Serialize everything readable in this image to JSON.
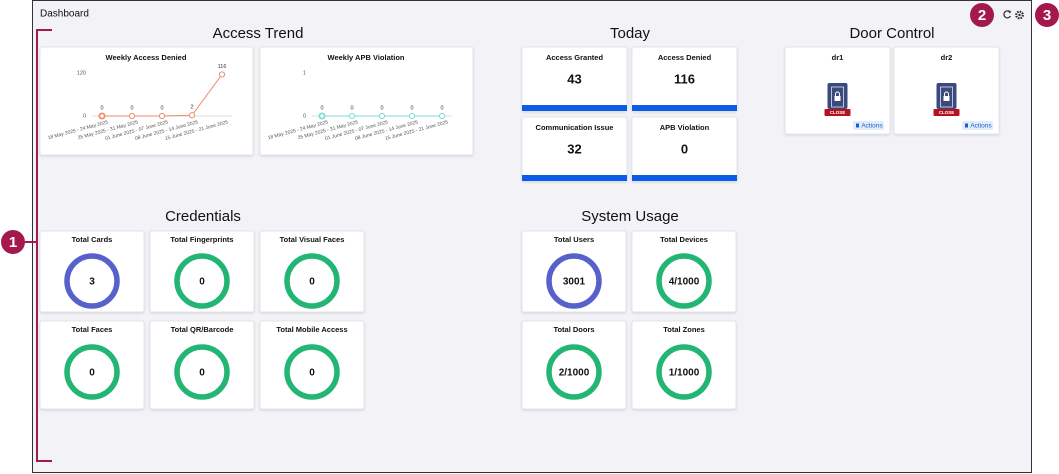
{
  "header": {
    "title": "Dashboard"
  },
  "annotations": [
    "1",
    "2",
    "3"
  ],
  "access_trend": {
    "title": "Access Trend",
    "charts": [
      {
        "type": "line",
        "title": "Weekly Access Denied",
        "categories": [
          "18 May 2025 - 24 May 2025",
          "25 May 2025 - 31 May 2025",
          "01 June 2025 - 07 June 2025",
          "08 June 2025 - 14 June 2025",
          "15 June 2025 - 21 June 2025"
        ],
        "values": [
          0,
          0,
          0,
          2,
          116
        ],
        "ylim": [
          0,
          120
        ],
        "yticks": [
          0,
          120
        ],
        "color": "#f28a6b"
      },
      {
        "type": "line",
        "title": "Weekly APB Violation",
        "categories": [
          "18 May 2025 - 24 May 2025",
          "25 May 2025 - 31 May 2025",
          "01 June 2025 - 07 June 2025",
          "08 June 2025 - 14 June 2025",
          "15 June 2025 - 21 June 2025"
        ],
        "values": [
          0,
          0,
          0,
          0,
          0
        ],
        "ylim": [
          0,
          1
        ],
        "yticks": [
          0,
          1
        ],
        "color": "#7fdcd6"
      }
    ]
  },
  "today": {
    "title": "Today",
    "cards": [
      {
        "label": "Access Granted",
        "value": 43
      },
      {
        "label": "Access Denied",
        "value": 116
      },
      {
        "label": "Communication Issue",
        "value": 32
      },
      {
        "label": "APB Violation",
        "value": 0
      }
    ]
  },
  "door_control": {
    "title": "Door Control",
    "doors": [
      {
        "name": "dr1",
        "status": "CLOSE",
        "action": "Actions"
      },
      {
        "name": "dr2",
        "status": "CLOSE",
        "action": "Actions"
      }
    ]
  },
  "credentials": {
    "title": "Credentials",
    "cards": [
      {
        "label": "Total Cards",
        "value": 3,
        "color": "#5661cc"
      },
      {
        "label": "Total Fingerprints",
        "value": 0,
        "color": "#22b573"
      },
      {
        "label": "Total Visual Faces",
        "value": 0,
        "color": "#22b573"
      },
      {
        "label": "Total Faces",
        "value": 0,
        "color": "#22b573"
      },
      {
        "label": "Total QR/Barcode",
        "value": 0,
        "color": "#22b573"
      },
      {
        "label": "Total Mobile Access",
        "value": 0,
        "color": "#22b573"
      }
    ]
  },
  "system_usage": {
    "title": "System Usage",
    "cards": [
      {
        "label": "Total Users",
        "value": 3001,
        "color": "#5661cc"
      },
      {
        "label": "Total Devices",
        "value": "4/1000",
        "color": "#22b573"
      },
      {
        "label": "Total Doors",
        "value": "2/1000",
        "color": "#22b573"
      },
      {
        "label": "Total Zones",
        "value": "1/1000",
        "color": "#22b573"
      }
    ]
  }
}
